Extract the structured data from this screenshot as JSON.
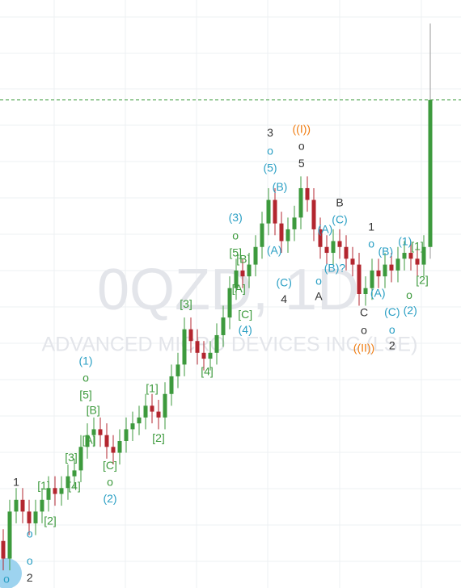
{
  "chart_data": {
    "type": "candlestick",
    "watermark": "0QZD, 1D",
    "watermark_subtitle": "ADVANCED MICRO DEVICES INC (LSE)",
    "ylim": [
      0,
      100
    ],
    "up_color": "#3d9a3d",
    "down_color": "#b3262f",
    "last_price_color": "#3d9a3d",
    "open": [
      8,
      5,
      13,
      15,
      13,
      11,
      13,
      15,
      17,
      16,
      17,
      19,
      20,
      24,
      26,
      27,
      26,
      24,
      23,
      25,
      27,
      28,
      29,
      31,
      30,
      29,
      33,
      36,
      38,
      44,
      42,
      40,
      39,
      40,
      43,
      46,
      51,
      54,
      53,
      55,
      58,
      62,
      66,
      62,
      59,
      61,
      63,
      68,
      66,
      61,
      58,
      57,
      59,
      58,
      56,
      55,
      50,
      51,
      54,
      53,
      55,
      54,
      56,
      57,
      56,
      55,
      58
    ],
    "high": [
      10,
      15,
      17,
      17,
      15,
      15,
      17,
      19,
      19,
      19,
      21,
      22,
      26,
      28,
      29,
      29,
      28,
      26,
      27,
      29,
      30,
      31,
      33,
      33,
      32,
      35,
      38,
      40,
      46,
      46,
      44,
      42,
      42,
      45,
      48,
      53,
      56,
      56,
      57,
      60,
      64,
      68,
      68,
      64,
      63,
      65,
      70,
      70,
      68,
      63,
      60,
      61,
      61,
      60,
      58,
      57,
      53,
      56,
      56,
      57,
      57,
      58,
      59,
      59,
      58,
      60,
      96
    ],
    "low": [
      3,
      3,
      11,
      11,
      9,
      9,
      11,
      13,
      14,
      14,
      15,
      17,
      18,
      22,
      24,
      24,
      22,
      21,
      21,
      23,
      25,
      26,
      27,
      28,
      27,
      27,
      31,
      34,
      36,
      40,
      38,
      37,
      37,
      38,
      41,
      44,
      49,
      51,
      51,
      53,
      56,
      60,
      60,
      57,
      57,
      59,
      61,
      64,
      59,
      56,
      55,
      55,
      56,
      54,
      53,
      48,
      48,
      49,
      51,
      51,
      52,
      52,
      54,
      54,
      53,
      53,
      56
    ],
    "close": [
      5,
      13,
      15,
      13,
      11,
      13,
      15,
      17,
      16,
      17,
      19,
      20,
      24,
      26,
      27,
      26,
      24,
      23,
      25,
      27,
      28,
      29,
      31,
      30,
      29,
      33,
      36,
      38,
      44,
      42,
      40,
      39,
      40,
      43,
      46,
      51,
      54,
      53,
      55,
      58,
      62,
      66,
      62,
      59,
      61,
      63,
      68,
      66,
      61,
      58,
      57,
      59,
      58,
      56,
      55,
      50,
      51,
      54,
      53,
      55,
      54,
      56,
      57,
      56,
      55,
      58,
      83
    ],
    "annotations": [
      {
        "text": "1",
        "x": 2,
        "y": 17.9,
        "color": "#333333"
      },
      {
        "text": "o",
        "x": 4.1,
        "y": 9.1,
        "color": "#2a9fc4"
      },
      {
        "text": "o",
        "x": 4.1,
        "y": 4.5,
        "color": "#2a9fc4"
      },
      {
        "text": "2",
        "x": 4.1,
        "y": 1.6,
        "color": "#333333"
      },
      {
        "text": "o",
        "x": 0.5,
        "y": 1.4,
        "color": "#2a9fc4"
      },
      {
        "text": "[2]",
        "x": 7.25,
        "y": 11.3,
        "color": "#3d9a3d"
      },
      {
        "text": "[1]",
        "x": 6.25,
        "y": 17.3,
        "color": "#3d9a3d"
      },
      {
        "text": "[4]",
        "x": 11,
        "y": 17.2,
        "color": "#3d9a3d"
      },
      {
        "text": "[3]",
        "x": 10.5,
        "y": 22.1,
        "color": "#3d9a3d"
      },
      {
        "text": "(1)",
        "x": 12.75,
        "y": 38.5,
        "color": "#2a9fc4"
      },
      {
        "text": "o",
        "x": 12.75,
        "y": 35.6,
        "color": "#3d9a3d"
      },
      {
        "text": "[5]",
        "x": 12.75,
        "y": 32.7,
        "color": "#3d9a3d"
      },
      {
        "text": "[B]",
        "x": 13.9,
        "y": 30.1,
        "color": "#3d9a3d"
      },
      {
        "text": "[A]",
        "x": 13.25,
        "y": 25,
        "color": "#3d9a3d"
      },
      {
        "text": "[C]",
        "x": 16.5,
        "y": 20.7,
        "color": "#3d9a3d"
      },
      {
        "text": "o",
        "x": 16.5,
        "y": 17.9,
        "color": "#3d9a3d"
      },
      {
        "text": "(2)",
        "x": 16.5,
        "y": 15.1,
        "color": "#2a9fc4"
      },
      {
        "text": "[1]",
        "x": 23,
        "y": 33.8,
        "color": "#3d9a3d"
      },
      {
        "text": "[2]",
        "x": 24,
        "y": 25.4,
        "color": "#3d9a3d"
      },
      {
        "text": "[3]",
        "x": 28.25,
        "y": 48.2,
        "color": "#3d9a3d"
      },
      {
        "text": "[4]",
        "x": 31.5,
        "y": 36.7,
        "color": "#3d9a3d"
      },
      {
        "text": "(3)",
        "x": 35.9,
        "y": 62.9,
        "color": "#2a9fc4"
      },
      {
        "text": "o",
        "x": 35.9,
        "y": 59.8,
        "color": "#3d9a3d"
      },
      {
        "text": "[5]",
        "x": 35.9,
        "y": 56.9,
        "color": "#3d9a3d"
      },
      {
        "text": "[B]",
        "x": 37.1,
        "y": 55.8,
        "color": "#3d9a3d"
      },
      {
        "text": "[A]",
        "x": 36.4,
        "y": 50.8,
        "color": "#3d9a3d"
      },
      {
        "text": "[C]",
        "x": 37.4,
        "y": 46.4,
        "color": "#3d9a3d"
      },
      {
        "text": "(4)",
        "x": 37.4,
        "y": 43.8,
        "color": "#2a9fc4"
      },
      {
        "text": "3",
        "x": 41.25,
        "y": 77.3,
        "color": "#333333"
      },
      {
        "text": "o",
        "x": 41.25,
        "y": 74.2,
        "color": "#2a9fc4"
      },
      {
        "text": "(5)",
        "x": 41.25,
        "y": 71.3,
        "color": "#2a9fc4"
      },
      {
        "text": "(B)",
        "x": 42.75,
        "y": 68.1,
        "color": "#2a9fc4"
      },
      {
        "text": "(A)",
        "x": 41.9,
        "y": 57.3,
        "color": "#2a9fc4"
      },
      {
        "text": "(C)",
        "x": 43.4,
        "y": 51.8,
        "color": "#2a9fc4"
      },
      {
        "text": "4",
        "x": 43.4,
        "y": 49,
        "color": "#333333"
      },
      {
        "text": "((I))",
        "x": 46.1,
        "y": 77.9,
        "color": "#f07d12"
      },
      {
        "text": "o",
        "x": 46.1,
        "y": 75,
        "color": "#333333"
      },
      {
        "text": "5",
        "x": 46.1,
        "y": 72.1,
        "color": "#333333"
      },
      {
        "text": "B",
        "x": 52,
        "y": 65.4,
        "color": "#333333"
      },
      {
        "text": "(C)",
        "x": 52,
        "y": 62.5,
        "color": "#2a9fc4"
      },
      {
        "text": "(A)",
        "x": 49.75,
        "y": 60.9,
        "color": "#2a9fc4"
      },
      {
        "text": "(B)?",
        "x": 51.25,
        "y": 54.3,
        "color": "#2a9fc4"
      },
      {
        "text": "o",
        "x": 48.75,
        "y": 52.1,
        "color": "#2a9fc4"
      },
      {
        "text": "A",
        "x": 48.75,
        "y": 49.5,
        "color": "#333333"
      },
      {
        "text": "1",
        "x": 56.9,
        "y": 61.3,
        "color": "#333333"
      },
      {
        "text": "o",
        "x": 56.9,
        "y": 58.4,
        "color": "#2a9fc4"
      },
      {
        "text": "(B)",
        "x": 59.1,
        "y": 57.1,
        "color": "#2a9fc4"
      },
      {
        "text": "(A)",
        "x": 57.9,
        "y": 50,
        "color": "#2a9fc4"
      },
      {
        "text": "C",
        "x": 55.75,
        "y": 46.7,
        "color": "#333333"
      },
      {
        "text": "o",
        "x": 55.75,
        "y": 43.7,
        "color": "#333333"
      },
      {
        "text": "((II))",
        "x": 55.75,
        "y": 40.7,
        "color": "#f07d12"
      },
      {
        "text": "(C)",
        "x": 60.1,
        "y": 46.8,
        "color": "#2a9fc4"
      },
      {
        "text": "o",
        "x": 60.1,
        "y": 43.8,
        "color": "#2a9fc4"
      },
      {
        "text": "2",
        "x": 60.1,
        "y": 41.1,
        "color": "#333333"
      },
      {
        "text": "(1)",
        "x": 62.1,
        "y": 58.8,
        "color": "#2a9fc4"
      },
      {
        "text": "[1]",
        "x": 64,
        "y": 58,
        "color": "#3d9a3d"
      },
      {
        "text": "o",
        "x": 62.75,
        "y": 49.7,
        "color": "#3d9a3d"
      },
      {
        "text": "(2)",
        "x": 62.9,
        "y": 47.1,
        "color": "#2a9fc4"
      },
      {
        "text": "[2]",
        "x": 64.75,
        "y": 52.2,
        "color": "#3d9a3d"
      }
    ]
  }
}
